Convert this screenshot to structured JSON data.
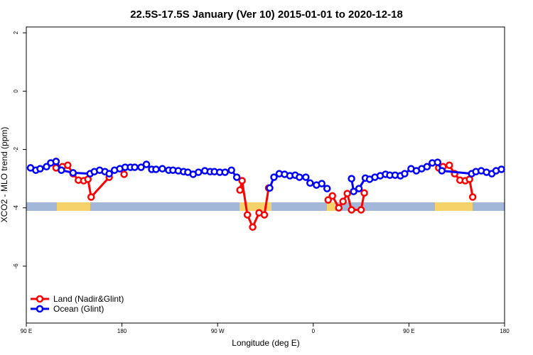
{
  "chart_data": {
    "type": "line",
    "title": "22.5S-17.5S January (Ver 10)   2015-01-01 to 2020-12-18",
    "x_label": "Longitude (deg E)",
    "y_label": "XCO2 - MLO trend (ppm)",
    "xlim": [
      90,
      540
    ],
    "ylim": [
      -7.95,
      2.2
    ],
    "xticks": [
      {
        "value": 90,
        "label": "90 E"
      },
      180,
      {
        "value": 270,
        "label": "90 W"
      },
      {
        "value": 360,
        "label": "0"
      },
      {
        "value": 450,
        "label": "90 E"
      },
      {
        "value": 540,
        "label": "180"
      }
    ],
    "yticks": [
      2,
      0,
      -2,
      -4,
      -6
    ],
    "legend": "bottom-left",
    "series": [
      {
        "name": "Land (Nadir&Glint)",
        "color": "#ff0000",
        "x": [
          118,
          124,
          129,
          134,
          139,
          144,
          148,
          151,
          168,
          null,
          182,
          null,
          291,
          293,
          298,
          303,
          309,
          314,
          318,
          null,
          374,
          378,
          384,
          388,
          392,
          396,
          405,
          408,
          null,
          478,
          482,
          488,
          493,
          498,
          503,
          507,
          510
        ],
        "values": [
          -2.63,
          -2.59,
          -2.54,
          -2.83,
          -3.05,
          -3.07,
          -3.02,
          -3.63,
          -2.95,
          null,
          -2.85,
          null,
          -3.39,
          -3.07,
          -4.24,
          -4.66,
          -4.17,
          -4.24,
          -3.32,
          null,
          -3.73,
          -3.59,
          -4.0,
          -3.78,
          -3.51,
          -4.07,
          -4.07,
          -3.49,
          null,
          -2.63,
          -2.59,
          -2.54,
          -2.83,
          -3.05,
          -3.07,
          -3.02,
          -3.63
        ]
      },
      {
        "name": "Ocean (Glint)",
        "color": "#0000ff",
        "x": [
          94,
          99,
          103,
          109,
          113,
          118,
          123,
          134,
          150,
          154,
          159,
          164,
          168,
          173,
          178,
          183,
          188,
          192,
          198,
          203,
          208,
          212,
          218,
          224,
          228,
          233,
          238,
          242,
          247,
          252,
          258,
          263,
          267,
          272,
          277,
          283,
          288,
          null,
          319,
          323,
          328,
          333,
          338,
          343,
          347,
          353,
          357,
          363,
          368,
          373,
          null,
          396,
          398,
          403,
          409,
          413,
          418,
          423,
          428,
          432,
          437,
          442,
          446,
          452,
          457,
          462,
          467,
          472,
          477,
          481,
          509,
          513,
          518,
          523,
          528,
          532,
          537
        ],
        "values": [
          -2.63,
          -2.71,
          -2.66,
          -2.59,
          -2.46,
          -2.41,
          -2.71,
          -2.8,
          -2.83,
          -2.76,
          -2.71,
          -2.76,
          -2.83,
          -2.71,
          -2.66,
          -2.61,
          -2.61,
          -2.61,
          -2.61,
          -2.51,
          -2.68,
          -2.68,
          -2.66,
          -2.71,
          -2.71,
          -2.73,
          -2.76,
          -2.78,
          -2.85,
          -2.78,
          -2.73,
          -2.76,
          -2.76,
          -2.78,
          -2.78,
          -2.71,
          -2.95,
          null,
          -3.32,
          -2.95,
          -2.83,
          -2.85,
          -2.9,
          -2.88,
          -2.95,
          -2.95,
          -3.15,
          -3.22,
          -3.17,
          -3.34,
          null,
          -3.0,
          -3.44,
          -3.34,
          -2.98,
          -3.02,
          -2.95,
          -2.9,
          -2.85,
          -2.88,
          -2.88,
          -2.9,
          -2.83,
          -2.66,
          -2.73,
          -2.66,
          -2.59,
          -2.46,
          -2.44,
          -2.73,
          -2.83,
          -2.76,
          -2.73,
          -2.78,
          -2.83,
          -2.73,
          -2.68
        ]
      }
    ]
  }
}
